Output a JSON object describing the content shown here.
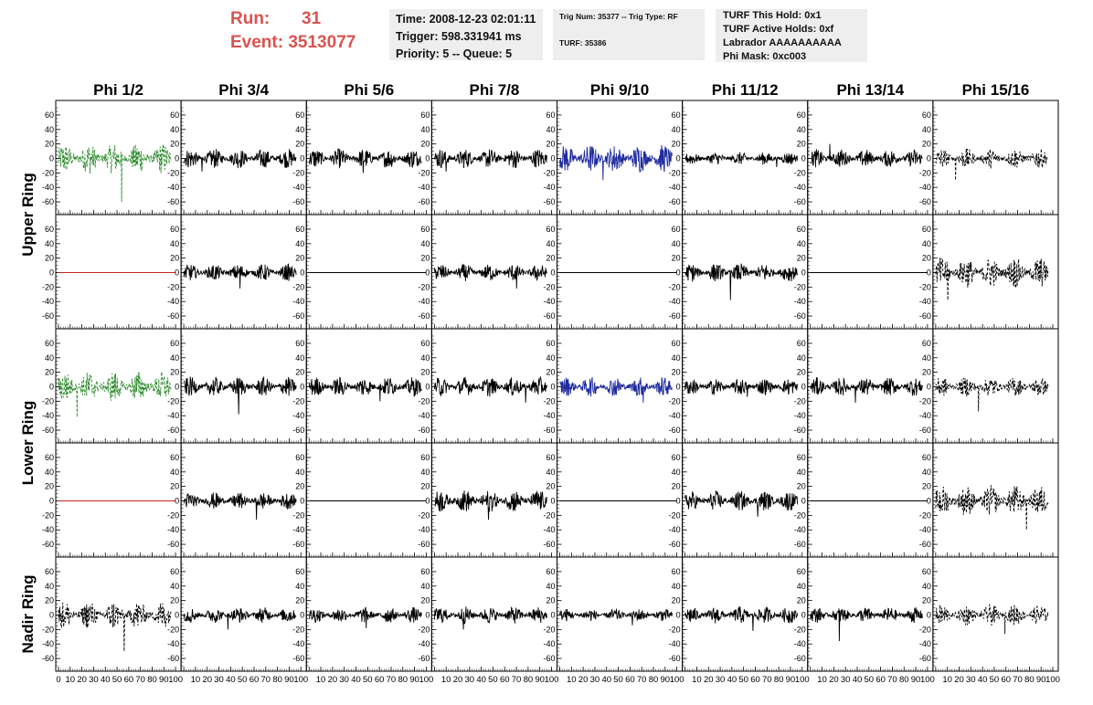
{
  "header": {
    "run_label": "Run:",
    "run_value": "31",
    "event_label": "Event:",
    "event_value": "3513077"
  },
  "info_time": {
    "time": "Time: 2008-12-23 02:01:11",
    "trigger": "Trigger: 598.331941 ms",
    "priority": "Priority: 5 -- Queue: 5"
  },
  "info_trig": {
    "trig": "Trig Num: 35377 -- Trig Type: RF",
    "turf": "TURF: 35386"
  },
  "info_turf": {
    "hold": "TURF This Hold: 0x1",
    "active": "TURF Active Holds: 0xf",
    "labrador": "Labrador AAAAAAAAAA",
    "phimask": "Phi Mask: 0xc003"
  },
  "chart_data": {
    "type": "line",
    "column_titles": [
      "Phi 1/2",
      "Phi 3/4",
      "Phi 5/6",
      "Phi 7/8",
      "Phi 9/10",
      "Phi 11/12",
      "Phi 13/14",
      "Phi 15/16"
    ],
    "ring_labels": [
      "Upper Ring",
      "Lower Ring",
      "Nadir Ring"
    ],
    "xlim": [
      0,
      100
    ],
    "ylim": [
      -70,
      70
    ],
    "x_ticks": [
      0,
      10,
      20,
      30,
      40,
      50,
      60,
      70,
      80,
      90,
      100
    ],
    "x_tick_labels": [
      "0",
      "10",
      "20",
      "30",
      "40",
      "50",
      "60",
      "70",
      "80",
      "90",
      "100"
    ],
    "y_ticks": [
      -60,
      -40,
      -20,
      0,
      20,
      40,
      60
    ],
    "y_tick_labels": [
      "-60",
      "-40",
      "-20",
      "0",
      "20",
      "40",
      "60"
    ],
    "colors": {
      "black": "#000000",
      "green": "#2e8b2e",
      "blue": "#1f2b9e",
      "red": "#cc2222"
    },
    "panels": [
      [
        {
          "style": "green-dashed",
          "amp": 22,
          "spike": -60
        },
        {
          "style": "black",
          "amp": 14,
          "spike": -18
        },
        {
          "style": "black",
          "amp": 14,
          "spike": -20
        },
        {
          "style": "black",
          "amp": 14,
          "spike": -18
        },
        {
          "style": "blue",
          "amp": 20,
          "spike": -30
        },
        {
          "style": "black",
          "amp": 9,
          "spike": -12
        },
        {
          "style": "black",
          "amp": 13,
          "spike": 20
        },
        {
          "style": "black-dashed",
          "amp": 14,
          "spike": -30
        }
      ],
      [
        {
          "style": "red-flat",
          "amp": 0,
          "spike": 0
        },
        {
          "style": "black",
          "amp": 12,
          "spike": -22
        },
        {
          "style": "black-flat",
          "amp": 0,
          "spike": 0
        },
        {
          "style": "black",
          "amp": 12,
          "spike": -22
        },
        {
          "style": "black-flat",
          "amp": 0,
          "spike": 0
        },
        {
          "style": "black",
          "amp": 13,
          "spike": -38
        },
        {
          "style": "black-flat",
          "amp": 0,
          "spike": 0
        },
        {
          "style": "black-dashed",
          "amp": 22,
          "spike": -38
        }
      ],
      [
        {
          "style": "green-dashed",
          "amp": 22,
          "spike": -42
        },
        {
          "style": "black",
          "amp": 14,
          "spike": -38
        },
        {
          "style": "black",
          "amp": 14,
          "spike": -20
        },
        {
          "style": "black",
          "amp": 14,
          "spike": -22
        },
        {
          "style": "blue",
          "amp": 14,
          "spike": -22
        },
        {
          "style": "black",
          "amp": 12,
          "spike": -14
        },
        {
          "style": "black",
          "amp": 13,
          "spike": -22
        },
        {
          "style": "black-dashed",
          "amp": 14,
          "spike": -34
        }
      ],
      [
        {
          "style": "red-flat",
          "amp": 0,
          "spike": 0
        },
        {
          "style": "black",
          "amp": 12,
          "spike": -26
        },
        {
          "style": "black-flat",
          "amp": 0,
          "spike": 0
        },
        {
          "style": "black",
          "amp": 16,
          "spike": -26
        },
        {
          "style": "black-flat",
          "amp": 0,
          "spike": 0
        },
        {
          "style": "black",
          "amp": 14,
          "spike": -22
        },
        {
          "style": "black-flat",
          "amp": 0,
          "spike": 0
        },
        {
          "style": "black-dashed",
          "amp": 22,
          "spike": -40
        }
      ],
      [
        {
          "style": "black-dashed",
          "amp": 20,
          "spike": -50
        },
        {
          "style": "black",
          "amp": 11,
          "spike": -20
        },
        {
          "style": "black",
          "amp": 11,
          "spike": -18
        },
        {
          "style": "black",
          "amp": 12,
          "spike": -20
        },
        {
          "style": "black",
          "amp": 9,
          "spike": -14
        },
        {
          "style": "black",
          "amp": 12,
          "spike": -22
        },
        {
          "style": "black",
          "amp": 11,
          "spike": -36
        },
        {
          "style": "black-dashed",
          "amp": 15,
          "spike": -26
        }
      ]
    ]
  }
}
